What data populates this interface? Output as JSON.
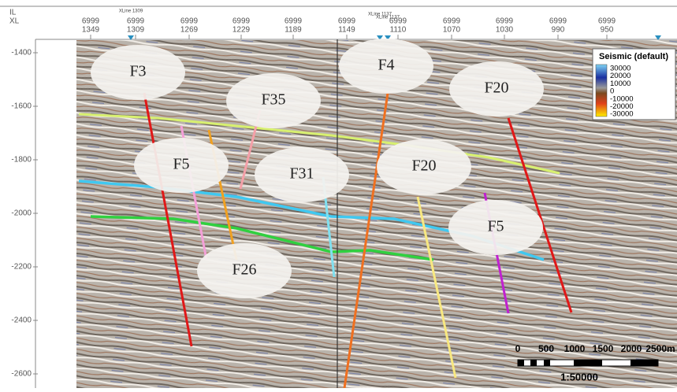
{
  "header": {
    "il_label": "IL",
    "xl_label": "XL",
    "columns": [
      {
        "il": "6999",
        "xl": "1349"
      },
      {
        "il": "6999",
        "xl": "1309"
      },
      {
        "il": "6999",
        "xl": "1269"
      },
      {
        "il": "6999",
        "xl": "1229"
      },
      {
        "il": "6999",
        "xl": "1189"
      },
      {
        "il": "6999",
        "xl": "1149"
      },
      {
        "il": "6999",
        "xl": "1110"
      },
      {
        "il": "6999",
        "xl": "1070"
      },
      {
        "il": "6999",
        "xl": "1030"
      },
      {
        "il": "6999",
        "xl": "990"
      },
      {
        "il": "6999",
        "xl": "950"
      }
    ],
    "markers": [
      "XLine 1309",
      "XLine 1137",
      "XLine 1137"
    ]
  },
  "depth_ticks": [
    "-1400",
    "-1600",
    "-1800",
    "-2000",
    "-2200",
    "-2400",
    "-2600"
  ],
  "legend": {
    "title": "Seismic (default)",
    "labels": [
      "30000",
      "20000",
      "10000",
      "0",
      "-10000",
      "-20000",
      "-30000"
    ]
  },
  "faults": [
    "F3",
    "F35",
    "F5",
    "F31",
    "F4",
    "F20",
    "F20",
    "F5",
    "F26"
  ],
  "scale_bar": {
    "labels": [
      "0",
      "500",
      "1000",
      "1500",
      "2000",
      "2500m"
    ],
    "ratio": "1:50000"
  }
}
